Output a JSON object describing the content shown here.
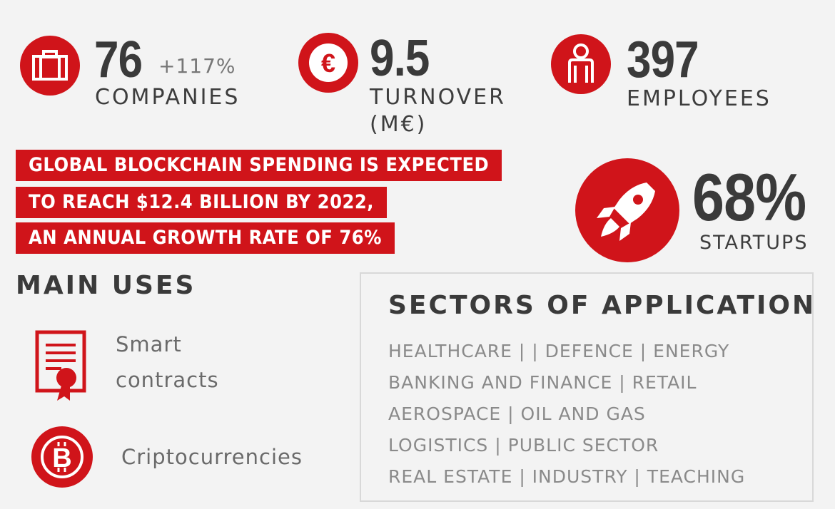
{
  "stats": {
    "companies": {
      "value": "76",
      "change": "+117%",
      "label": "COMPANIES",
      "icon": "briefcase-icon"
    },
    "turnover": {
      "value": "9.5",
      "label_line1": "TURNOVER",
      "label_line2": "(M€)",
      "icon": "euro-icon",
      "icon_glyph": "€"
    },
    "employees": {
      "value": "397",
      "label": "EMPLOYEES",
      "icon": "person-icon"
    },
    "startups": {
      "value": "68%",
      "label": "STARTUPS",
      "icon": "rocket-icon"
    }
  },
  "banner": {
    "lines": [
      "GLOBAL BLOCKCHAIN SPENDING IS EXPECTED",
      "TO REACH $12.4 BILLION BY 2022,",
      "AN ANNUAL GROWTH RATE OF 76%"
    ]
  },
  "main_uses": {
    "title": "MAIN USES",
    "items": [
      {
        "label_line1": "Smart",
        "label_line2": "contracts",
        "icon": "certificate-icon"
      },
      {
        "label": "Criptocurrencies",
        "icon": "bitcoin-icon",
        "icon_glyph": "B"
      }
    ]
  },
  "sectors": {
    "title": "SECTORS OF APPLICATION",
    "rows": [
      "HEALTHCARE |  | DEFENCE | ENERGY",
      "BANKING AND FINANCE | RETAIL",
      "AEROSPACE | OIL AND GAS",
      "LOGISTICS | PUBLIC SECTOR",
      "REAL ESTATE | INDUSTRY | TEACHING"
    ]
  },
  "colors": {
    "accent": "#d0141a",
    "text_dark": "#3a3a3a",
    "text_muted": "#8a8a8a",
    "background": "#f3f3f3"
  }
}
